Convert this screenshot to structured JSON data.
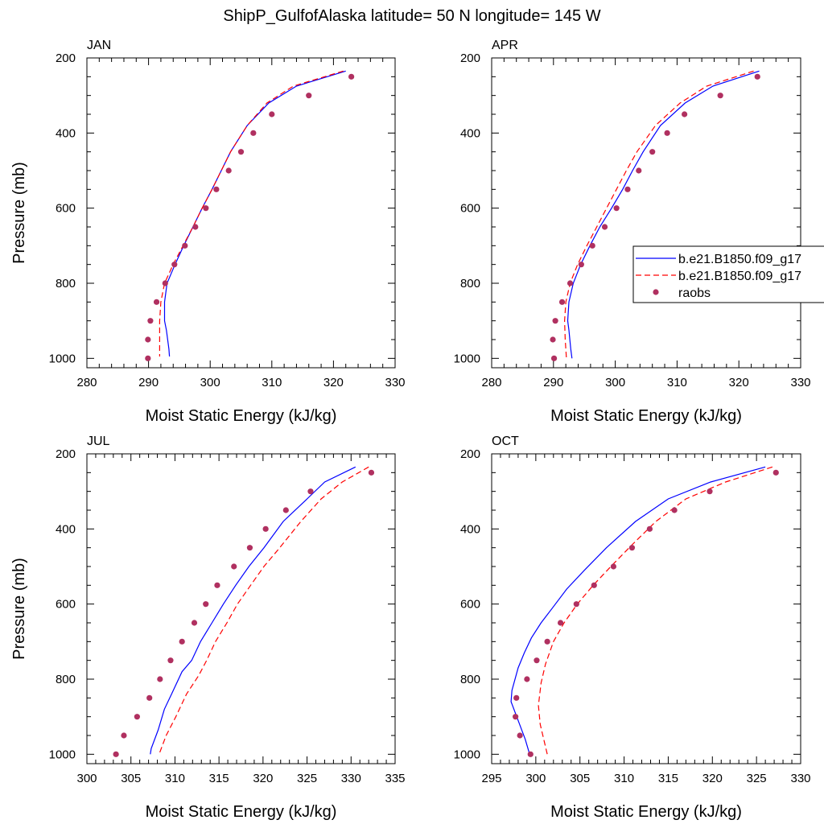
{
  "figure": {
    "title": "ShipP_GulfofAlaska  latitude= 50 N longitude= 145 W"
  },
  "legend": {
    "entries": [
      {
        "label": "b.e21.B1850.f09_g17",
        "style": "solid",
        "color": "#0000ff"
      },
      {
        "label": "b.e21.B1850.f09_g17",
        "style": "dashed",
        "color": "#ff0000"
      },
      {
        "label": "raobs",
        "style": "dot",
        "color": "#b03060"
      }
    ]
  },
  "colors": {
    "model_solid": "#0000ff",
    "model_dashed": "#ff0000",
    "raobs": "#b03060"
  },
  "chart_data": [
    {
      "type": "line",
      "panel": "JAN",
      "title": "JAN",
      "xlabel": "Moist Static Energy (kJ/kg)",
      "ylabel": "Pressure (mb)",
      "xlim": [
        280,
        330
      ],
      "xticks": [
        280,
        290,
        300,
        310,
        320,
        330
      ],
      "ylim": [
        200,
        1025
      ],
      "yticks": [
        200,
        400,
        600,
        800,
        1000
      ],
      "series": [
        {
          "name": "b.e21.B1850.f09_g17 (solid)",
          "style": "solid",
          "x": [
            322.0,
            314.0,
            309.5,
            306.0,
            303.3,
            301.8,
            300.3,
            298.7,
            297.2,
            295.7,
            294.3,
            293.0,
            292.6,
            292.6,
            292.9,
            293.3,
            293.4
          ],
          "p": [
            235,
            275,
            320,
            380,
            450,
            500,
            550,
            600,
            650,
            700,
            750,
            800,
            850,
            900,
            925,
            975,
            995
          ]
        },
        {
          "name": "b.e21.B1850.f09_g17 (dashed)",
          "style": "dashed",
          "x": [
            321.6,
            313.5,
            309.2,
            306.0,
            303.3,
            301.8,
            300.3,
            298.7,
            297.2,
            295.6,
            294.0,
            292.6,
            292.0,
            291.8,
            291.8,
            291.8
          ],
          "p": [
            235,
            275,
            320,
            380,
            450,
            500,
            550,
            600,
            650,
            700,
            750,
            800,
            850,
            900,
            950,
            995
          ]
        },
        {
          "name": "raobs",
          "style": "dot",
          "x": [
            322.9,
            316.0,
            310.0,
            307.0,
            305.0,
            303.0,
            301.0,
            299.3,
            297.6,
            295.9,
            294.2,
            292.7,
            291.3,
            290.3,
            289.9,
            289.9
          ],
          "p": [
            250,
            300,
            350,
            400,
            450,
            500,
            550,
            600,
            650,
            700,
            750,
            800,
            850,
            900,
            950,
            1000
          ]
        }
      ]
    },
    {
      "type": "line",
      "panel": "APR",
      "title": "APR",
      "xlabel": "Moist Static Energy (kJ/kg)",
      "ylabel": "",
      "xlim": [
        280,
        330
      ],
      "xticks": [
        280,
        290,
        300,
        310,
        320,
        330
      ],
      "ylim": [
        200,
        1025
      ],
      "yticks": [
        200,
        400,
        600,
        800,
        1000
      ],
      "series": [
        {
          "name": "b.e21.B1850.f09_g17 (solid)",
          "style": "solid",
          "x": [
            323.3,
            315.8,
            311.3,
            307.3,
            304.5,
            302.8,
            301.2,
            299.4,
            297.5,
            295.9,
            294.4,
            293.2,
            292.5,
            292.3,
            292.5,
            292.8,
            293.0
          ],
          "p": [
            235,
            275,
            320,
            380,
            450,
            500,
            550,
            600,
            650,
            700,
            750,
            800,
            850,
            900,
            925,
            975,
            1000
          ]
        },
        {
          "name": "b.e21.B1850.f09_g17 (dashed)",
          "style": "dashed",
          "x": [
            322.4,
            314.8,
            310.5,
            306.5,
            303.5,
            301.8,
            300.2,
            298.6,
            297.0,
            295.4,
            293.9,
            292.7,
            292.0,
            291.8,
            291.9,
            292.1
          ],
          "p": [
            235,
            275,
            320,
            380,
            450,
            500,
            550,
            600,
            650,
            700,
            750,
            800,
            850,
            900,
            950,
            1000
          ]
        },
        {
          "name": "raobs",
          "style": "dot",
          "x": [
            323.0,
            317.0,
            311.2,
            308.4,
            306.0,
            303.8,
            302.0,
            300.2,
            298.3,
            296.3,
            294.5,
            292.7,
            291.4,
            290.3,
            289.9,
            290.1
          ],
          "p": [
            250,
            300,
            350,
            400,
            450,
            500,
            550,
            600,
            650,
            700,
            750,
            800,
            850,
            900,
            950,
            1000
          ]
        }
      ]
    },
    {
      "type": "line",
      "panel": "JUL",
      "title": "JUL",
      "xlabel": "Moist Static Energy (kJ/kg)",
      "ylabel": "Pressure (mb)",
      "xlim": [
        300,
        335
      ],
      "xticks": [
        300,
        305,
        310,
        315,
        320,
        325,
        330,
        335
      ],
      "ylim": [
        200,
        1025
      ],
      "yticks": [
        200,
        400,
        600,
        800,
        1000
      ],
      "series": [
        {
          "name": "b.e21.B1850.f09_g17 (solid)",
          "style": "solid",
          "x": [
            330.5,
            327.0,
            325.0,
            322.3,
            320.1,
            318.4,
            316.9,
            315.5,
            314.2,
            312.9,
            311.9,
            310.8,
            309.6,
            308.8,
            308.1,
            307.3,
            307.2
          ],
          "p": [
            235,
            275,
            320,
            380,
            450,
            500,
            550,
            600,
            650,
            700,
            750,
            780,
            840,
            880,
            935,
            985,
            1000
          ]
        },
        {
          "name": "b.e21.B1850.f09_g17 (dashed)",
          "style": "dashed",
          "x": [
            332.0,
            329.0,
            326.6,
            324.3,
            321.9,
            320.1,
            318.6,
            317.1,
            315.9,
            314.6,
            313.6,
            312.7,
            311.3,
            310.1,
            309.0,
            308.2
          ],
          "p": [
            235,
            275,
            320,
            380,
            450,
            500,
            550,
            600,
            650,
            700,
            750,
            790,
            840,
            900,
            950,
            1000
          ]
        },
        {
          "name": "raobs",
          "style": "dot",
          "x": [
            332.3,
            325.4,
            322.6,
            320.3,
            318.5,
            316.7,
            314.8,
            313.5,
            312.2,
            310.8,
            309.5,
            308.3,
            307.1,
            305.7,
            304.2,
            303.3
          ],
          "p": [
            250,
            300,
            350,
            400,
            450,
            500,
            550,
            600,
            650,
            700,
            750,
            800,
            850,
            900,
            950,
            1000
          ]
        }
      ]
    },
    {
      "type": "line",
      "panel": "OCT",
      "title": "OCT",
      "xlabel": "Moist Static Energy (kJ/kg)",
      "ylabel": "",
      "xlim": [
        295,
        330
      ],
      "xticks": [
        295,
        300,
        305,
        310,
        315,
        320,
        325,
        330
      ],
      "ylim": [
        200,
        1025
      ],
      "yticks": [
        200,
        400,
        600,
        800,
        1000
      ],
      "series": [
        {
          "name": "b.e21.B1850.f09_g17 (solid)",
          "style": "solid",
          "x": [
            326.0,
            319.8,
            315.0,
            311.3,
            308.0,
            305.5,
            303.5,
            301.9,
            300.6,
            299.5,
            298.7,
            298.0,
            297.3,
            297.2,
            298.0,
            298.8,
            299.3
          ],
          "p": [
            235,
            275,
            320,
            380,
            450,
            510,
            560,
            610,
            650,
            690,
            730,
            770,
            830,
            860,
            910,
            960,
            1000
          ]
        },
        {
          "name": "b.e21.B1850.f09_g17 (dashed)",
          "style": "dashed",
          "x": [
            326.8,
            321.5,
            317.0,
            313.6,
            311.0,
            308.5,
            306.5,
            304.7,
            303.2,
            302.0,
            301.1,
            300.6,
            300.3,
            300.5,
            301.0,
            301.3
          ],
          "p": [
            235,
            275,
            320,
            380,
            440,
            500,
            550,
            600,
            650,
            700,
            760,
            810,
            870,
            920,
            970,
            1000
          ]
        },
        {
          "name": "raobs",
          "style": "dot",
          "x": [
            327.2,
            319.7,
            315.7,
            312.9,
            310.9,
            308.8,
            306.6,
            304.6,
            302.8,
            301.3,
            300.1,
            299.0,
            297.8,
            297.7,
            298.2,
            299.4
          ],
          "p": [
            250,
            300,
            350,
            400,
            450,
            500,
            550,
            600,
            650,
            700,
            750,
            800,
            850,
            900,
            950,
            1000
          ]
        }
      ]
    }
  ]
}
